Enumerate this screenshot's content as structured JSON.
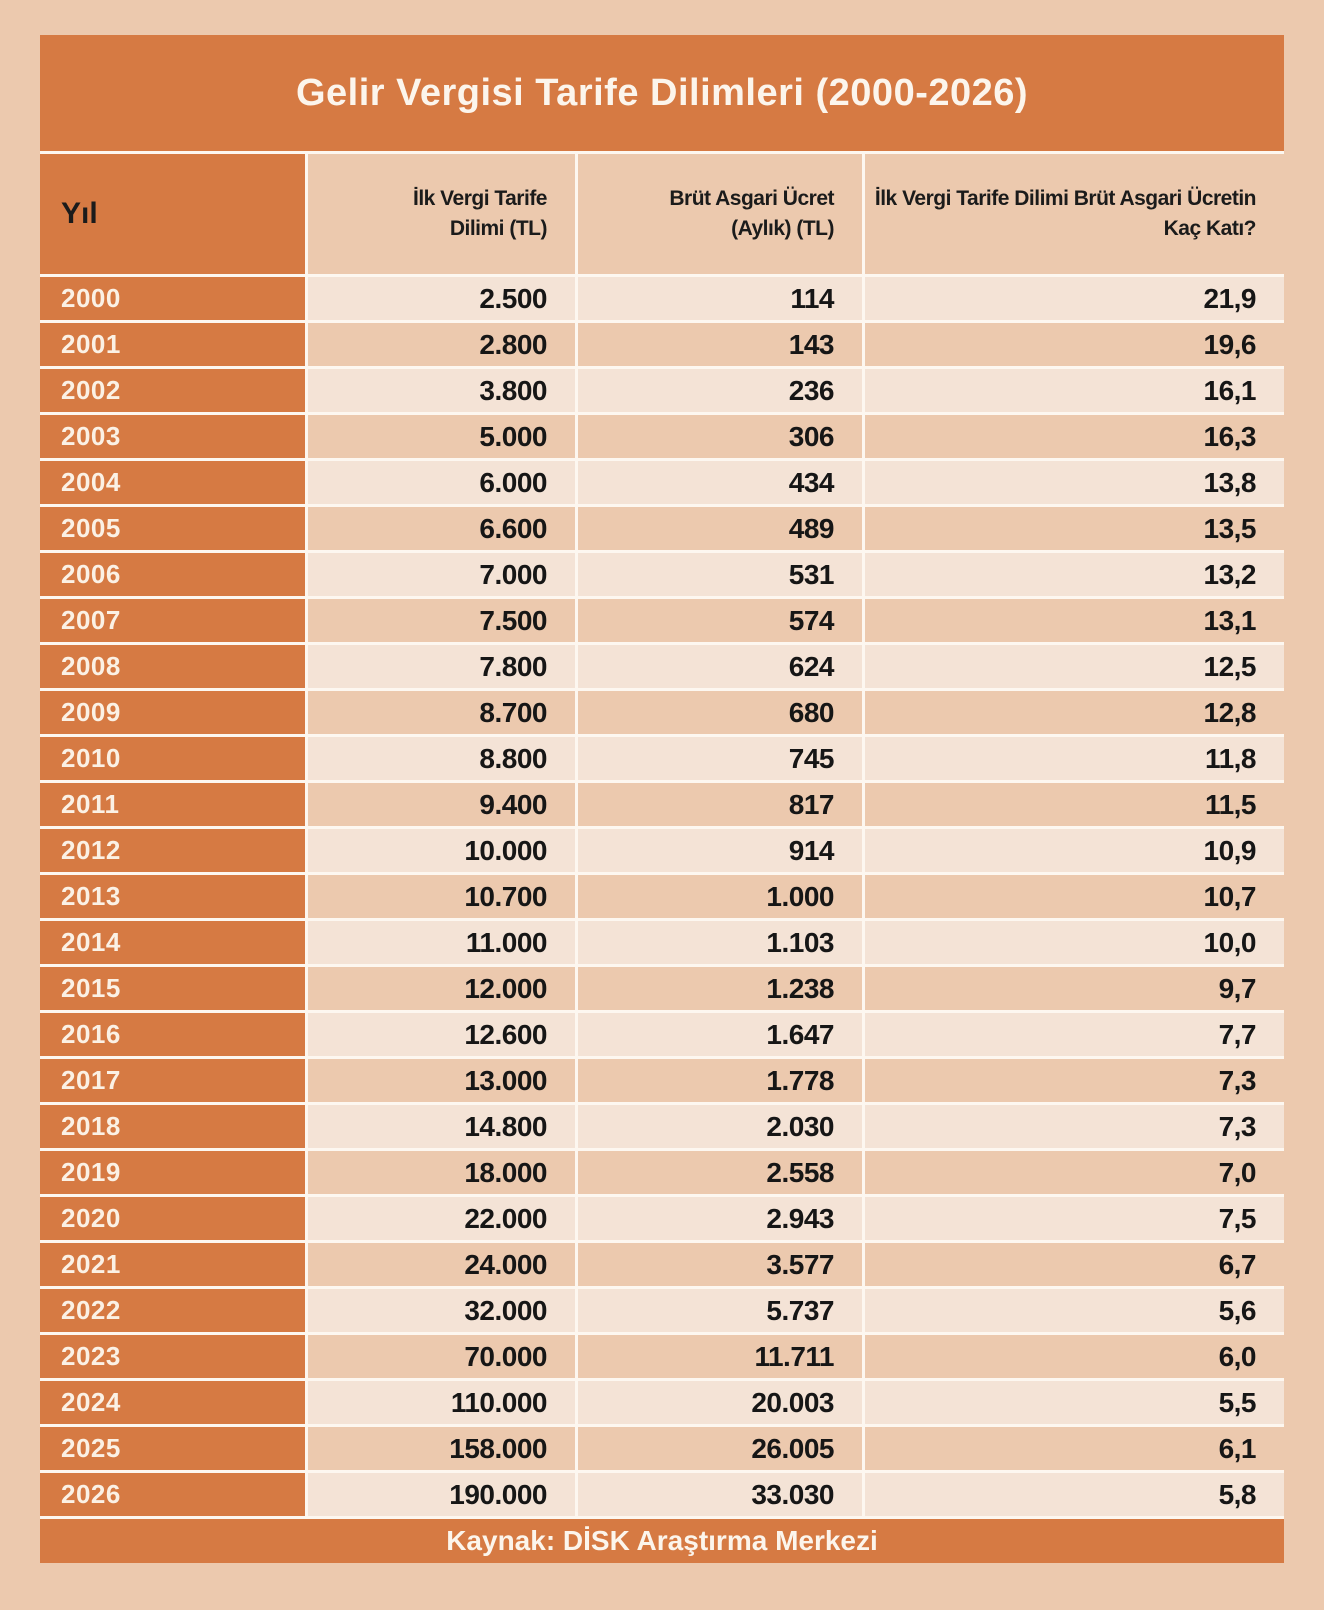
{
  "title": "Gelir Vergisi Tarife Dilimleri (2000-2026)",
  "footer": "Kaynak: DİSK Araştırma Merkezi",
  "columns": [
    "Yıl",
    "İlk Vergi Tarife Dilimi (TL)",
    "Brüt Asgari Ücret (Aylık) (TL)",
    "İlk Vergi Tarife Dilimi Brüt Asgari Ücretin Kaç Katı?"
  ],
  "rows": [
    [
      "2000",
      "2.500",
      "114",
      "21,9"
    ],
    [
      "2001",
      "2.800",
      "143",
      "19,6"
    ],
    [
      "2002",
      "3.800",
      "236",
      "16,1"
    ],
    [
      "2003",
      "5.000",
      "306",
      "16,3"
    ],
    [
      "2004",
      "6.000",
      "434",
      "13,8"
    ],
    [
      "2005",
      "6.600",
      "489",
      "13,5"
    ],
    [
      "2006",
      "7.000",
      "531",
      "13,2"
    ],
    [
      "2007",
      "7.500",
      "574",
      "13,1"
    ],
    [
      "2008",
      "7.800",
      "624",
      "12,5"
    ],
    [
      "2009",
      "8.700",
      "680",
      "12,8"
    ],
    [
      "2010",
      "8.800",
      "745",
      "11,8"
    ],
    [
      "2011",
      "9.400",
      "817",
      "11,5"
    ],
    [
      "2012",
      "10.000",
      "914",
      "10,9"
    ],
    [
      "2013",
      "10.700",
      "1.000",
      "10,7"
    ],
    [
      "2014",
      "11.000",
      "1.103",
      "10,0"
    ],
    [
      "2015",
      "12.000",
      "1.238",
      "9,7"
    ],
    [
      "2016",
      "12.600",
      "1.647",
      "7,7"
    ],
    [
      "2017",
      "13.000",
      "1.778",
      "7,3"
    ],
    [
      "2018",
      "14.800",
      "2.030",
      "7,3"
    ],
    [
      "2019",
      "18.000",
      "2.558",
      "7,0"
    ],
    [
      "2020",
      "22.000",
      "2.943",
      "7,5"
    ],
    [
      "2021",
      "24.000",
      "3.577",
      "6,7"
    ],
    [
      "2022",
      "32.000",
      "5.737",
      "5,6"
    ],
    [
      "2023",
      "70.000",
      "11.711",
      "6,0"
    ],
    [
      "2024",
      "110.000",
      "20.003",
      "5,5"
    ],
    [
      "2025",
      "158.000",
      "26.005",
      "6,1"
    ],
    [
      "2026",
      "190.000",
      "33.030",
      "5,8"
    ]
  ],
  "colors": {
    "accent_orange": "#d67a43",
    "row_light": "#f4e3d6",
    "row_dark": "#ecc9ae",
    "grid_line": "#fdf7f0",
    "text_dark": "#1b1b1b",
    "text_light": "#fcf5ec"
  },
  "chart_data": {
    "type": "table",
    "title": "Gelir Vergisi Tarife Dilimleri (2000-2026)",
    "source": "Kaynak: DİSK Araştırma Merkezi",
    "columns": [
      "Yıl",
      "İlk Vergi Tarife Dilimi (TL)",
      "Brüt Asgari Ücret (Aylık) (TL)",
      "İlk Vergi Tarife Dilimi Brüt Asgari Ücretin Kaç Katı?"
    ],
    "categories": [
      "2000",
      "2001",
      "2002",
      "2003",
      "2004",
      "2005",
      "2006",
      "2007",
      "2008",
      "2009",
      "2010",
      "2011",
      "2012",
      "2013",
      "2014",
      "2015",
      "2016",
      "2017",
      "2018",
      "2019",
      "2020",
      "2021",
      "2022",
      "2023",
      "2024",
      "2025",
      "2026"
    ],
    "series": [
      {
        "name": "İlk Vergi Tarife Dilimi (TL)",
        "values": [
          2500,
          2800,
          3800,
          5000,
          6000,
          6600,
          7000,
          7500,
          7800,
          8700,
          8800,
          9400,
          10000,
          10700,
          11000,
          12000,
          12600,
          13000,
          14800,
          18000,
          22000,
          24000,
          32000,
          70000,
          110000,
          158000,
          190000
        ]
      },
      {
        "name": "Brüt Asgari Ücret (Aylık) (TL)",
        "values": [
          114,
          143,
          236,
          306,
          434,
          489,
          531,
          574,
          624,
          680,
          745,
          817,
          914,
          1000,
          1103,
          1238,
          1647,
          1778,
          2030,
          2558,
          2943,
          3577,
          5737,
          11711,
          20003,
          26005,
          33030
        ]
      },
      {
        "name": "İlk Vergi Tarife Dilimi Brüt Asgari Ücretin Kaç Katı?",
        "values": [
          21.9,
          19.6,
          16.1,
          16.3,
          13.8,
          13.5,
          13.2,
          13.1,
          12.5,
          12.8,
          11.8,
          11.5,
          10.9,
          10.7,
          10.0,
          9.7,
          7.7,
          7.3,
          7.3,
          7.0,
          7.5,
          6.7,
          5.6,
          6.0,
          5.5,
          6.1,
          5.8
        ]
      }
    ]
  }
}
